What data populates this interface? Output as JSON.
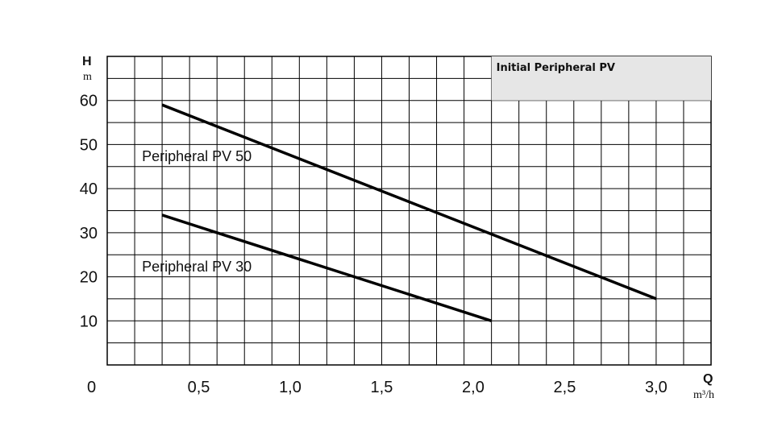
{
  "chart_data": {
    "type": "line",
    "title": "Initial Peripheral PV",
    "xlabel": "Q",
    "xunit": "m³/h",
    "ylabel": "H",
    "yunit": "m",
    "origin_label": "0",
    "xlim": [
      0,
      3.3
    ],
    "ylim": [
      0,
      70
    ],
    "x_ticks": [
      "0,5",
      "1,0",
      "1,5",
      "2,0",
      "2,5",
      "3,0"
    ],
    "x_tick_values": [
      0.5,
      1.0,
      1.5,
      2.0,
      2.5,
      3.0
    ],
    "y_ticks": [
      "10",
      "20",
      "30",
      "40",
      "50",
      "60"
    ],
    "y_tick_values": [
      10,
      20,
      30,
      40,
      50,
      60
    ],
    "grid": true,
    "grid_x_step": 0.15,
    "grid_y_step": 5,
    "series": [
      {
        "name": "Peripheral PV 50",
        "x": [
          0.3,
          3.0
        ],
        "y": [
          59,
          15
        ],
        "color": "#000000"
      },
      {
        "name": "Peripheral PV 30",
        "x": [
          0.3,
          2.1
        ],
        "y": [
          34,
          10
        ],
        "color": "#000000"
      }
    ],
    "title_box_color": "#e6e6e6"
  }
}
